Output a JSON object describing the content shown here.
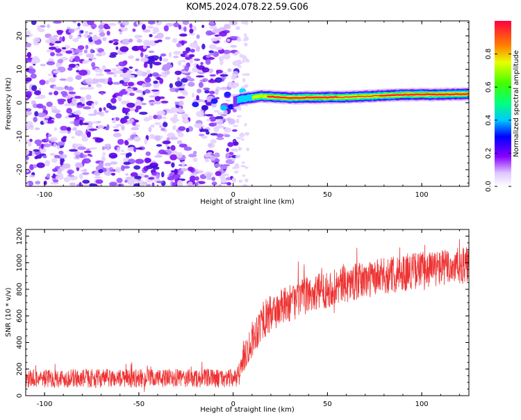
{
  "title": "KOM5.2024.078.22.59.G06",
  "chart_data": [
    {
      "type": "heatmap",
      "xlabel": "Height of straight line (km)",
      "ylabel": "Frequency (Hz)",
      "xlim": [
        -110,
        125
      ],
      "ylim": [
        -25,
        24.5
      ],
      "xticks": [
        -100,
        -50,
        0,
        50,
        100
      ],
      "yticks": [
        -20,
        -10,
        0,
        10,
        20
      ],
      "colorbar": {
        "label": "Normalized spectral amplitude",
        "range": [
          0,
          1
        ],
        "ticks": [
          "0.0",
          "0.2",
          "0.4",
          "0.6",
          "0.8"
        ],
        "colormap": "gist_rainbow",
        "colors": [
          "#ff0028",
          "#ffe000",
          "#00ff00",
          "#00ffff",
          "#0000ff",
          "#8800ff",
          "#ffffff"
        ]
      },
      "signal_ridge": {
        "description_points": [
          {
            "x": 0,
            "y": 0.3,
            "amp": 0.3
          },
          {
            "x": 5,
            "y": 1.2,
            "amp": 0.4
          },
          {
            "x": 15,
            "y": 2.0,
            "amp": 0.7
          },
          {
            "x": 30,
            "y": 1.5,
            "amp": 0.9
          },
          {
            "x": 60,
            "y": 1.7,
            "amp": 0.85
          },
          {
            "x": 90,
            "y": 2.4,
            "amp": 0.95
          },
          {
            "x": 110,
            "y": 2.5,
            "amp": 0.95
          },
          {
            "x": 125,
            "y": 2.6,
            "amp": 0.95
          }
        ]
      }
    },
    {
      "type": "line",
      "xlabel": "Height of straight line (km)",
      "ylabel": "SNR (10 * v/v)",
      "xlim": [
        -110,
        125
      ],
      "ylim": [
        0,
        1250
      ],
      "xticks": [
        -100,
        -50,
        0,
        50,
        100
      ],
      "yticks": [
        0,
        200,
        400,
        600,
        800,
        1000,
        1200
      ],
      "color": "#ee3333",
      "envelope": [
        {
          "x": -110,
          "mean": 130,
          "spread": 70
        },
        {
          "x": 3,
          "mean": 130,
          "spread": 70
        },
        {
          "x": 5,
          "mean": 280,
          "spread": 120
        },
        {
          "x": 15,
          "mean": 560,
          "spread": 150
        },
        {
          "x": 25,
          "mean": 660,
          "spread": 140
        },
        {
          "x": 40,
          "mean": 760,
          "spread": 140
        },
        {
          "x": 60,
          "mean": 840,
          "spread": 140
        },
        {
          "x": 80,
          "mean": 900,
          "spread": 140
        },
        {
          "x": 100,
          "mean": 950,
          "spread": 140
        },
        {
          "x": 125,
          "mean": 980,
          "spread": 140
        }
      ]
    }
  ]
}
